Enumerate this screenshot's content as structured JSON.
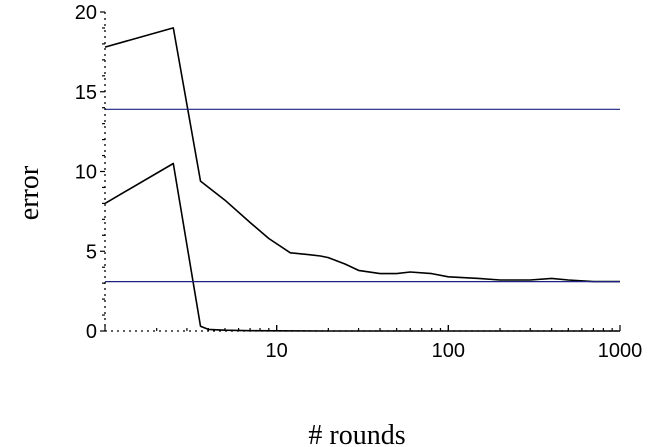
{
  "chart_data": {
    "type": "line",
    "title": "",
    "xlabel": "# rounds",
    "ylabel": "error",
    "xscale": "log",
    "xlim": [
      1,
      1000
    ],
    "ylim": [
      0,
      20
    ],
    "grid": false,
    "legend": "none",
    "x_ticks": [
      {
        "value": 10,
        "label": "10"
      },
      {
        "value": 100,
        "label": "100"
      },
      {
        "value": 1000,
        "label": "1000"
      }
    ],
    "y_ticks": [
      {
        "value": 0,
        "label": "0"
      },
      {
        "value": 5,
        "label": "5"
      },
      {
        "value": 10,
        "label": "10"
      },
      {
        "value": 15,
        "label": "15"
      },
      {
        "value": 20,
        "label": "20"
      }
    ],
    "series": [
      {
        "color": "#000000",
        "x": [
          1,
          2.5,
          3.6,
          5,
          7,
          9,
          12,
          15,
          18,
          20,
          25,
          30,
          40,
          50,
          60,
          80,
          100,
          150,
          200,
          300,
          400,
          500,
          700,
          1000
        ],
        "y": [
          17.8,
          19.0,
          9.4,
          8.2,
          6.8,
          5.8,
          4.9,
          4.8,
          4.7,
          4.6,
          4.2,
          3.8,
          3.6,
          3.6,
          3.7,
          3.6,
          3.4,
          3.3,
          3.2,
          3.2,
          3.3,
          3.2,
          3.1,
          3.1
        ]
      },
      {
        "color": "#000000",
        "x": [
          1,
          2.5,
          3.6,
          4,
          5,
          7,
          10,
          20,
          50,
          100,
          1000
        ],
        "y": [
          8.0,
          10.5,
          0.3,
          0.1,
          0.05,
          0.02,
          0.01,
          0.0,
          0.0,
          0.0,
          0.0
        ]
      },
      {
        "color": "#1a237e",
        "x": [
          1,
          1000
        ],
        "y": [
          13.9,
          13.9
        ]
      },
      {
        "color": "#1a237e",
        "x": [
          1,
          1000
        ],
        "y": [
          3.1,
          3.1
        ]
      }
    ]
  }
}
